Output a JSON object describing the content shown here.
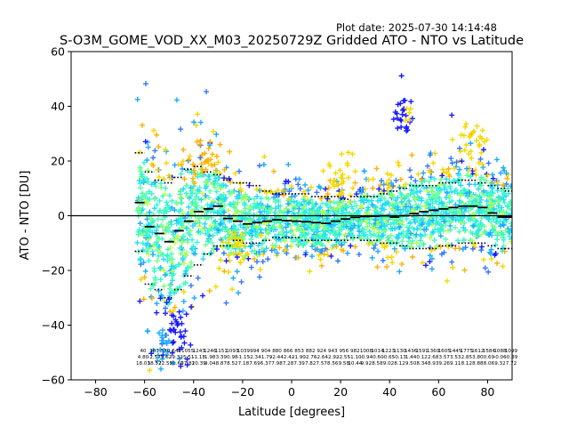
{
  "plot_date": "Plot date: 2025-07-30 14:14:48",
  "chart_data": {
    "type": "scatter",
    "title": "S-O3M_GOME_VOD_XX_M03_20250729Z Gridded ATO - NTO vs Latitude",
    "xlabel": "Latitude [degrees]",
    "ylabel": "ATO - NTO [DU]",
    "xlim": [
      -90,
      90
    ],
    "ylim": [
      -60,
      60
    ],
    "xticks": [
      -80,
      -60,
      -40,
      -20,
      0,
      20,
      40,
      60,
      80
    ],
    "yticks": [
      -60,
      -40,
      -20,
      0,
      20,
      40,
      60
    ],
    "zero_line": 0,
    "grid": false,
    "marker": "+",
    "colors": {
      "blue": "#1a1aff",
      "royal": "#3377ff",
      "sky": "#1eaaff",
      "cyan": "#22d8ff",
      "aqua": "#33f5d5",
      "mint": "#55ffb0",
      "green": "#7dff7a",
      "lime": "#b8ff44",
      "yellow": "#f5d800",
      "orange": "#ffb000"
    },
    "bins": {
      "lat": [
        -62,
        -58,
        -54,
        -50,
        -46,
        -42,
        -38,
        -34,
        -30,
        -26,
        -22,
        -18,
        -14,
        -10,
        -6,
        -2,
        2,
        6,
        10,
        14,
        18,
        22,
        26,
        30,
        34,
        38,
        42,
        46,
        50,
        54,
        58,
        62,
        66,
        70,
        74,
        78,
        82,
        86,
        89
      ],
      "mean": [
        4.8,
        -4.0,
        -6.5,
        -9.5,
        -5.5,
        -2.0,
        1.5,
        2.5,
        3.5,
        -1.0,
        -2.0,
        -3.0,
        -2.5,
        -2.0,
        -1.5,
        -1.8,
        -2.0,
        -2.2,
        -2.5,
        -2.8,
        -2.0,
        -1.2,
        -0.6,
        -0.3,
        -0.2,
        0.0,
        -0.5,
        0.0,
        0.8,
        1.5,
        2.0,
        2.5,
        3.0,
        3.5,
        3.5,
        3.0,
        1.0,
        -0.5,
        -0.5
      ],
      "upper": [
        23,
        16,
        13,
        12,
        14,
        17,
        18,
        16,
        15,
        13,
        12,
        12,
        11,
        9,
        8,
        8,
        8,
        8,
        7,
        7,
        7,
        6,
        7,
        7,
        7,
        8,
        9,
        10,
        11,
        11,
        11,
        12,
        12,
        13,
        13,
        12,
        11,
        10,
        9
      ],
      "lower": [
        -13,
        -25,
        -27,
        -30,
        -27,
        -22,
        -18,
        -14,
        -11,
        -11,
        -9,
        -10,
        -10,
        -9,
        -8,
        -8,
        -8,
        -9,
        -9,
        -9,
        -9,
        -9,
        -8,
        -9,
        -9,
        -10,
        -10,
        -11,
        -12,
        -12,
        -12,
        -11,
        -11,
        -10,
        -10,
        -10,
        -11,
        -12,
        -12
      ]
    },
    "counts": [
      "40",
      "363",
      "570",
      "645",
      "1055",
      "1243",
      "1246",
      "1151",
      "1093",
      "1039",
      "994",
      "904",
      "880",
      "866",
      "853",
      "882",
      "924",
      "943",
      "956",
      "982",
      "1008",
      "1014",
      "1223",
      "1130",
      "1436",
      "1591",
      "1360",
      "1605",
      "1445",
      "1775",
      "1612",
      "1584",
      "1088",
      "1099"
    ],
    "means_text": [
      "4.80",
      "-2.57",
      "-5.62",
      "-9.32",
      "-5.51",
      "-1.18",
      "1.98",
      "3.39",
      "0.98",
      "-1.15",
      "-2.34",
      "-1.79",
      "-2.44",
      "-2.42",
      "-1.90",
      "-2.76",
      "-2.64",
      "-2.92",
      "-2.55",
      "-1.10",
      "-0.94",
      "-0.60",
      "-0.65",
      "-0.13",
      "1.44",
      "0.12",
      "2.68",
      "3.57",
      "3.53",
      "2.85",
      "3.80",
      "0.69",
      "-0.06",
      "-0.39"
    ],
    "stds_text": [
      "18.03",
      "18.57",
      "22.55",
      "21.60",
      "17.82",
      "10.39",
      "9.04",
      "8.87",
      "8.52",
      "7.18",
      "7.69",
      "6.37",
      "7.98",
      "7.28",
      "7.39",
      "7.82",
      "7.57",
      "8.56",
      "9.58",
      "10.44",
      "9.92",
      "8.58",
      "9.02",
      "8.12",
      "9.50",
      "8.34",
      "8.93",
      "9.26",
      "9.11",
      "8.12",
      "8.88",
      "8.06",
      "9.32",
      "7.72"
    ]
  }
}
